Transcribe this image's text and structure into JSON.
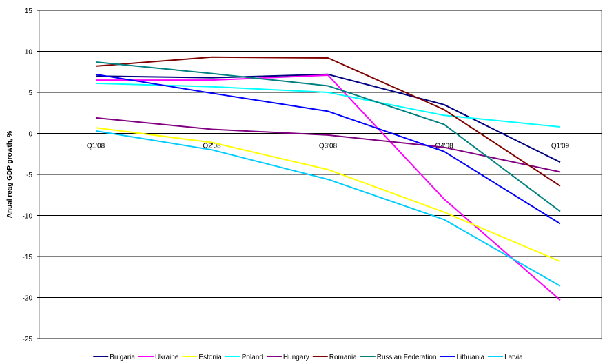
{
  "chart_data": {
    "type": "line",
    "title": "",
    "xlabel": "",
    "ylabel": "Anual reag GDP growth, %",
    "categories": [
      "Q1'08",
      "Q2'08",
      "Q3'08",
      "Q4'08",
      "Q1'09"
    ],
    "ylim": [
      -25,
      15
    ],
    "yticks": [
      15,
      10,
      5,
      0,
      -5,
      -10,
      -15,
      -20,
      -25
    ],
    "grid": "horizontal",
    "legend_position": "bottom",
    "series": [
      {
        "name": "Bulgaria",
        "color": "#000080",
        "values": [
          7.0,
          6.8,
          7.2,
          3.5,
          -3.5
        ]
      },
      {
        "name": "Ukraine",
        "color": "#ff00ff",
        "values": [
          6.5,
          6.5,
          7.1,
          -8.0,
          -20.3
        ]
      },
      {
        "name": "Estonia",
        "color": "#ffff00",
        "values": [
          0.7,
          -1.1,
          -4.4,
          -9.6,
          -15.6
        ]
      },
      {
        "name": "Poland",
        "color": "#00ffff",
        "values": [
          6.1,
          5.7,
          5.0,
          2.2,
          0.8
        ]
      },
      {
        "name": "Hungary",
        "color": "#800080",
        "values": [
          1.9,
          0.5,
          -0.2,
          -1.7,
          -4.7
        ]
      },
      {
        "name": "Romania",
        "color": "#800000",
        "values": [
          8.2,
          9.3,
          9.2,
          2.9,
          -6.4
        ]
      },
      {
        "name": "Russian Federation",
        "color": "#008080",
        "values": [
          8.7,
          7.3,
          5.8,
          1.1,
          -9.5
        ]
      },
      {
        "name": "Lithuania",
        "color": "#0000ff",
        "values": [
          7.2,
          4.9,
          2.7,
          -2.2,
          -11.0
        ]
      },
      {
        "name": "Latvia",
        "color": "#00ccff",
        "values": [
          0.3,
          -2.0,
          -5.6,
          -10.5,
          -18.6
        ]
      }
    ]
  }
}
